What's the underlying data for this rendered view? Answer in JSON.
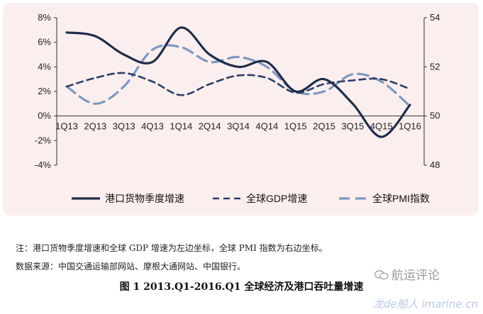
{
  "chart_data": {
    "type": "line",
    "categories": [
      "1Q13",
      "2Q13",
      "3Q13",
      "4Q13",
      "1Q14",
      "2Q14",
      "3Q14",
      "4Q14",
      "1Q15",
      "2Q15",
      "3Q15",
      "4Q15",
      "1Q16"
    ],
    "left_axis": {
      "ylim": [
        -4,
        8
      ],
      "ticks": [
        "-4%",
        "-2%",
        "0%",
        "2%",
        "4%",
        "6%",
        "8%"
      ]
    },
    "right_axis": {
      "ylim": [
        48,
        54
      ],
      "ticks": [
        "48",
        "50",
        "52",
        "54"
      ]
    },
    "grid": false,
    "legend_position": "bottom",
    "series": [
      {
        "name": "港口货物季度增速",
        "axis": "left",
        "style": "solid",
        "color": "#1f2d4a",
        "values": [
          6.8,
          6.5,
          5.0,
          4.4,
          7.2,
          5.0,
          4.0,
          4.4,
          2.0,
          3.0,
          1.0,
          -1.7,
          0.9
        ]
      },
      {
        "name": "全球GDP增速",
        "axis": "left",
        "style": "dashed",
        "color": "#2e3f66",
        "values": [
          2.4,
          3.1,
          3.5,
          2.8,
          1.7,
          2.6,
          3.3,
          3.1,
          1.9,
          2.6,
          2.9,
          3.0,
          2.2
        ]
      },
      {
        "name": "全球PMI指数",
        "axis": "right",
        "style": "dashed",
        "color": "#7e98bf",
        "values": [
          51.2,
          50.5,
          51.2,
          52.7,
          52.8,
          52.2,
          52.4,
          52.0,
          51.0,
          51.0,
          51.7,
          51.4,
          50.4
        ]
      }
    ]
  },
  "notes": {
    "line1": "注：港口货物季度增速和全球 GDP 增速为左边坐标，全球 PMI 指数为右边坐标。",
    "line2": "数据来源：中国交通运输部网站、摩根大通网站、中国银行。"
  },
  "caption": "图 1  2013.Q1-2016.Q1  全球经济及港口吞吐量增速",
  "brand": {
    "label": "航运评论",
    "icon": "wechat-icon"
  },
  "watermark": "龙de船人 imarine.cn"
}
